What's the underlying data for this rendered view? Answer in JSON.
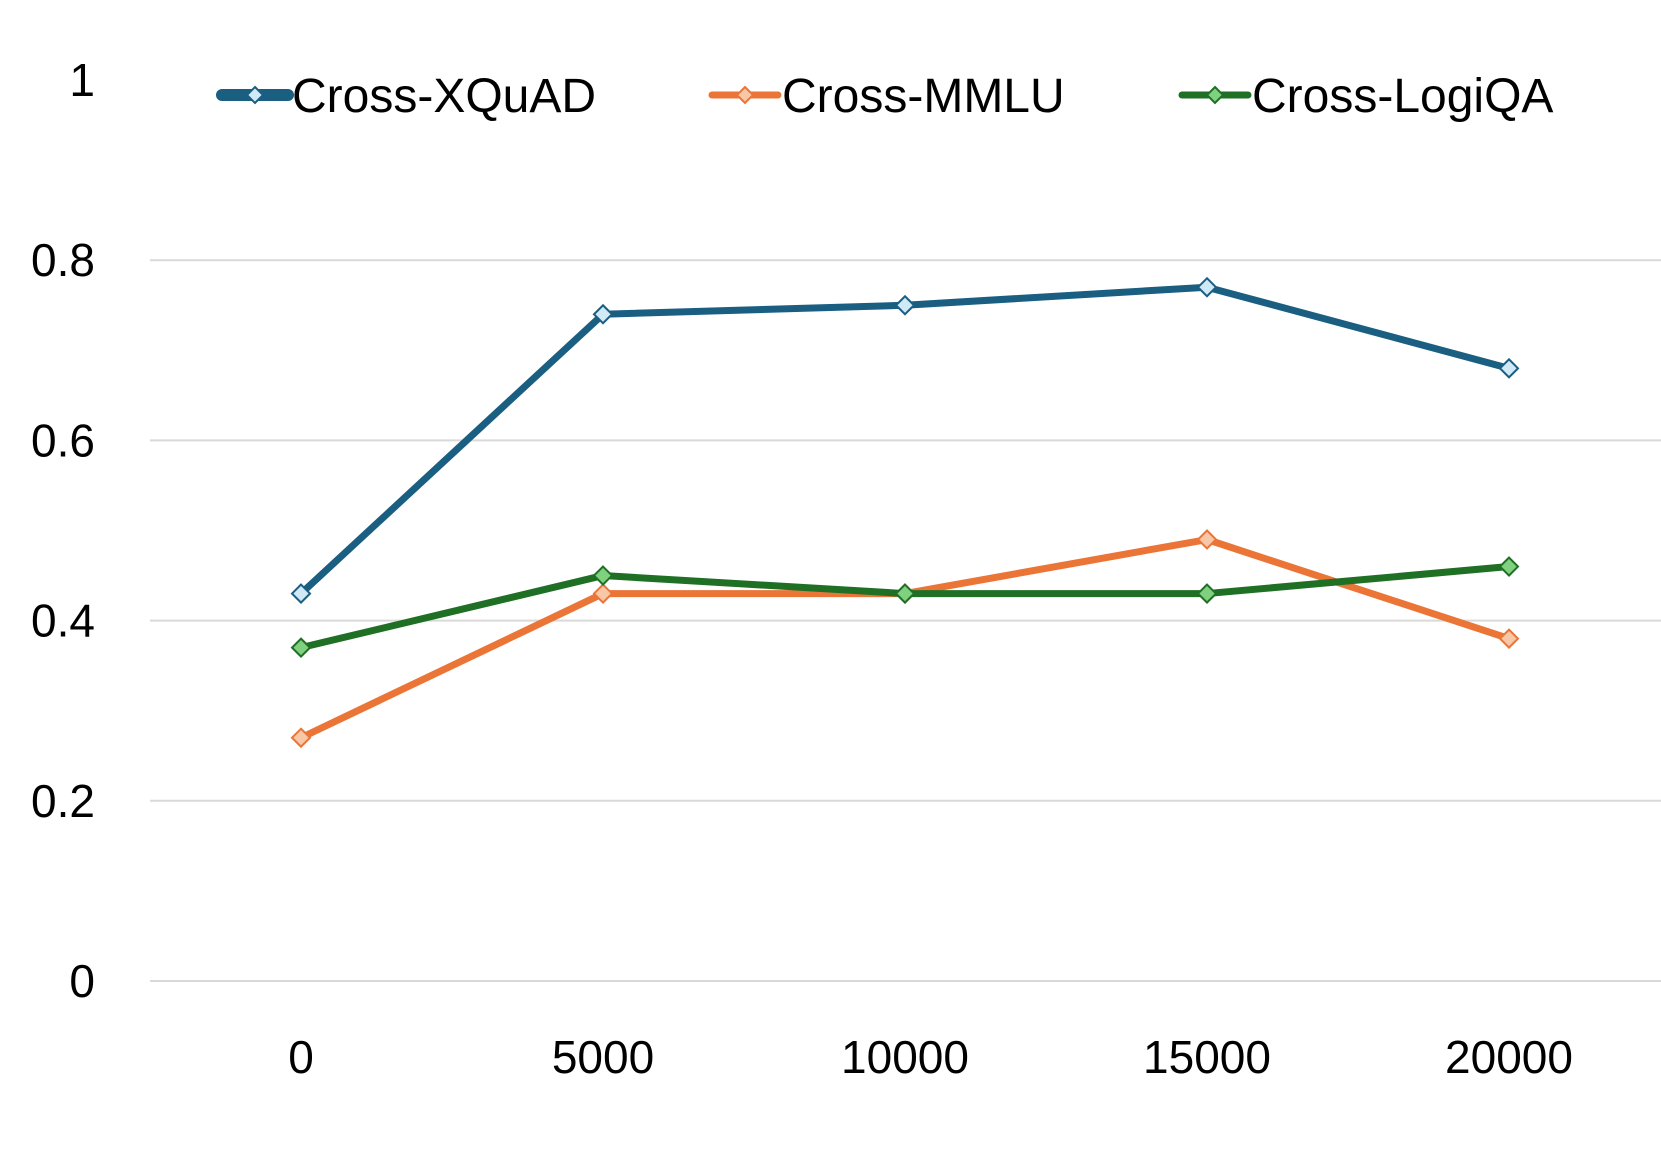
{
  "chart_data": {
    "type": "line",
    "x": [
      0,
      5000,
      10000,
      15000,
      20000
    ],
    "x_tick_labels": [
      "0",
      "5000",
      "10000",
      "15000",
      "20000"
    ],
    "ylim": [
      0,
      1
    ],
    "y_tick_labels": [
      "0",
      "0.2",
      "0.4",
      "0.6",
      "0.8",
      "1"
    ],
    "y_ticks": [
      0,
      0.2,
      0.4,
      0.6,
      0.8,
      1
    ],
    "grid": true,
    "legend_position": "top",
    "series": [
      {
        "name": "Cross-XQuAD",
        "values": [
          0.43,
          0.74,
          0.75,
          0.77,
          0.68
        ],
        "color": "#1a5e82",
        "marker_fill": "#cfe9f6",
        "marker": "diamond"
      },
      {
        "name": "Cross-MMLU",
        "values": [
          0.27,
          0.43,
          0.43,
          0.49,
          0.38
        ],
        "color": "#ea7537",
        "marker_fill": "#f8c7a8",
        "marker": "diamond"
      },
      {
        "name": "Cross-LogiQA",
        "values": [
          0.37,
          0.45,
          0.43,
          0.43,
          0.46
        ],
        "color": "#1f6f25",
        "marker_fill": "#7fd07f",
        "marker": "diamond"
      }
    ]
  }
}
